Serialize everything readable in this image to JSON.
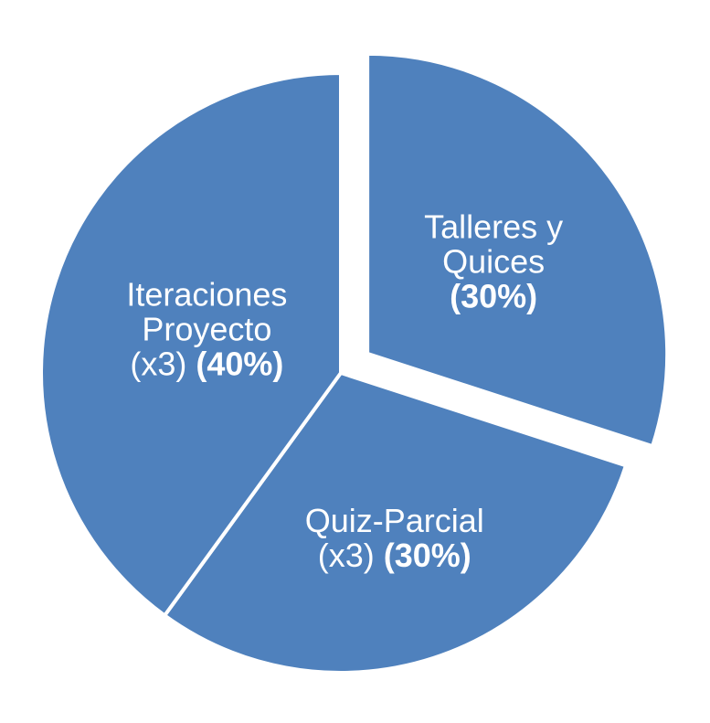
{
  "chart_data": {
    "type": "pie",
    "title": "",
    "slices": [
      {
        "key": "talleres",
        "lines": [
          "Talleres y",
          "Quices"
        ],
        "pct_label": "(30%)",
        "pct_inline_prefix": "",
        "value": 30,
        "exploded": true
      },
      {
        "key": "quiz",
        "lines": [
          "Quiz-Parcial"
        ],
        "pct_label": "(30%)",
        "pct_inline_prefix": "(x3) ",
        "value": 30,
        "exploded": false
      },
      {
        "key": "iteraciones",
        "lines": [
          "Iteraciones",
          "Proyecto"
        ],
        "pct_label": "(40%)",
        "pct_inline_prefix": "(x3) ",
        "value": 40,
        "exploded": false
      }
    ],
    "colors": {
      "slice_fill": "#4F81BD",
      "slice_stroke": "#FFFFFF",
      "label_text": "#FFFFFF"
    },
    "legend": "none"
  }
}
